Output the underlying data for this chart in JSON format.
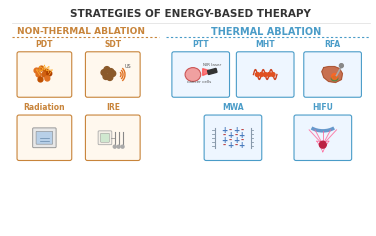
{
  "title": "STRATEGIES OF ENERGY-BASED THERAPY",
  "title_color": "#333333",
  "bg_color": "#ffffff",
  "left_section_label": "NON-THERMAL ABLATION",
  "right_section_label": "THERMAL ABLATION",
  "left_label_color": "#C8843A",
  "right_label_color": "#4A9CC8",
  "left_box_bg": "#FFF8EE",
  "left_box_border": "#C8843A",
  "right_box_bg": "#EEF6FF",
  "right_box_border": "#4A9CC8",
  "item_label_color_left": "#C8843A",
  "item_label_color_right": "#4A9CC8",
  "divider_color_left": "#C8843A",
  "divider_color_right": "#4A9CC8",
  "fig_width": 3.76,
  "fig_height": 2.36,
  "dpi": 100
}
